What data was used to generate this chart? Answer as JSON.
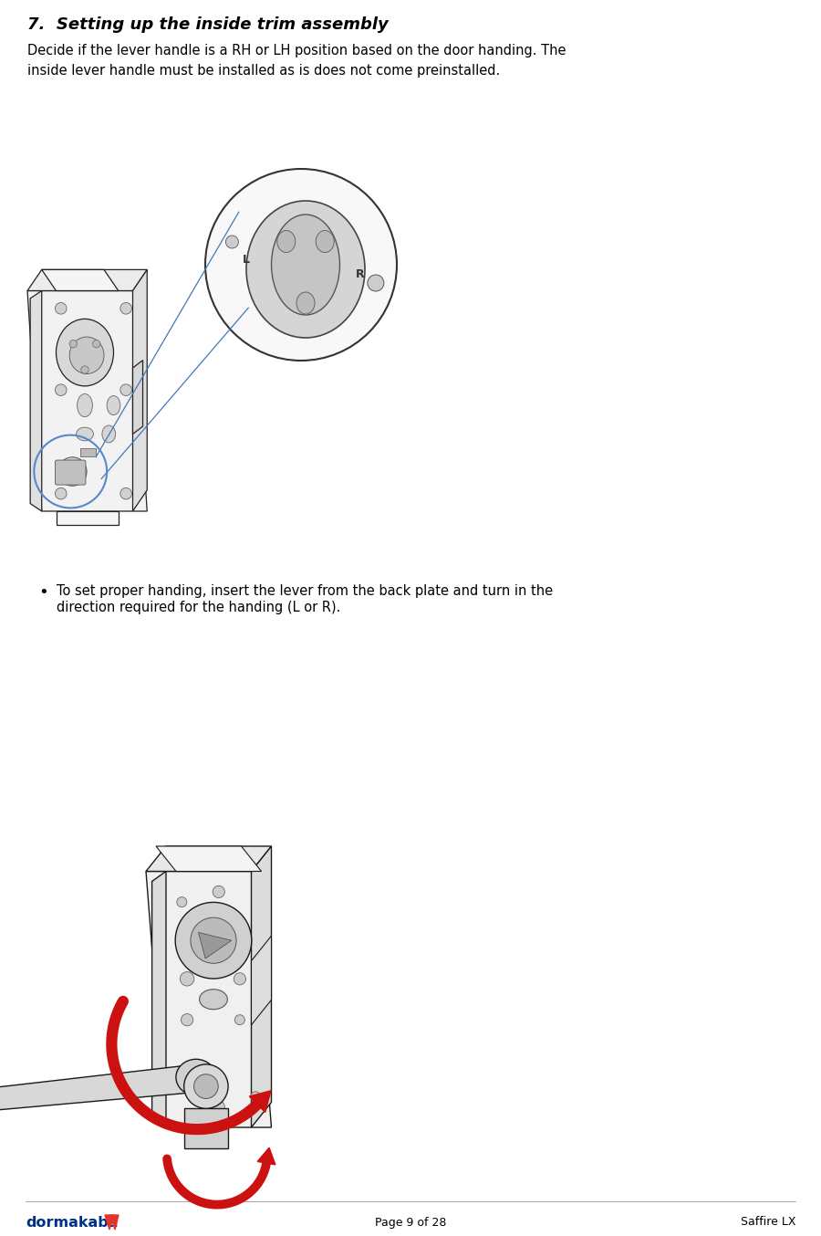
{
  "title": "7.  Setting up the inside trim assembly",
  "body_text_1": "Decide if the lever handle is a RH or LH position based on the door handing. The\ninside lever handle must be installed as is does not come preinstalled.",
  "body_fontsize": 10.5,
  "title_fontsize": 13,
  "bullet_text_line1": "To set proper handing, insert the lever from the back plate and turn in the",
  "bullet_text_line2": "direction required for the handing (L or R).",
  "footer_center": "Page 9 of 28",
  "footer_right": "Saffire LX",
  "footer_fontsize": 9,
  "bg_color": "#ffffff",
  "text_color": "#000000",
  "blue_circle_color": "#5588cc",
  "zoom_line_color": "#4477bb",
  "red_arrow_color": "#cc1111",
  "line_color": "#222222",
  "light_gray": "#e8e8e8",
  "mid_gray": "#cccccc",
  "dark_gray": "#888888",
  "dormakaba_blue": "#003087",
  "dormakaba_red": "#e63329",
  "fig_width": 9.0,
  "fig_height": 13.54,
  "dpi": 100
}
